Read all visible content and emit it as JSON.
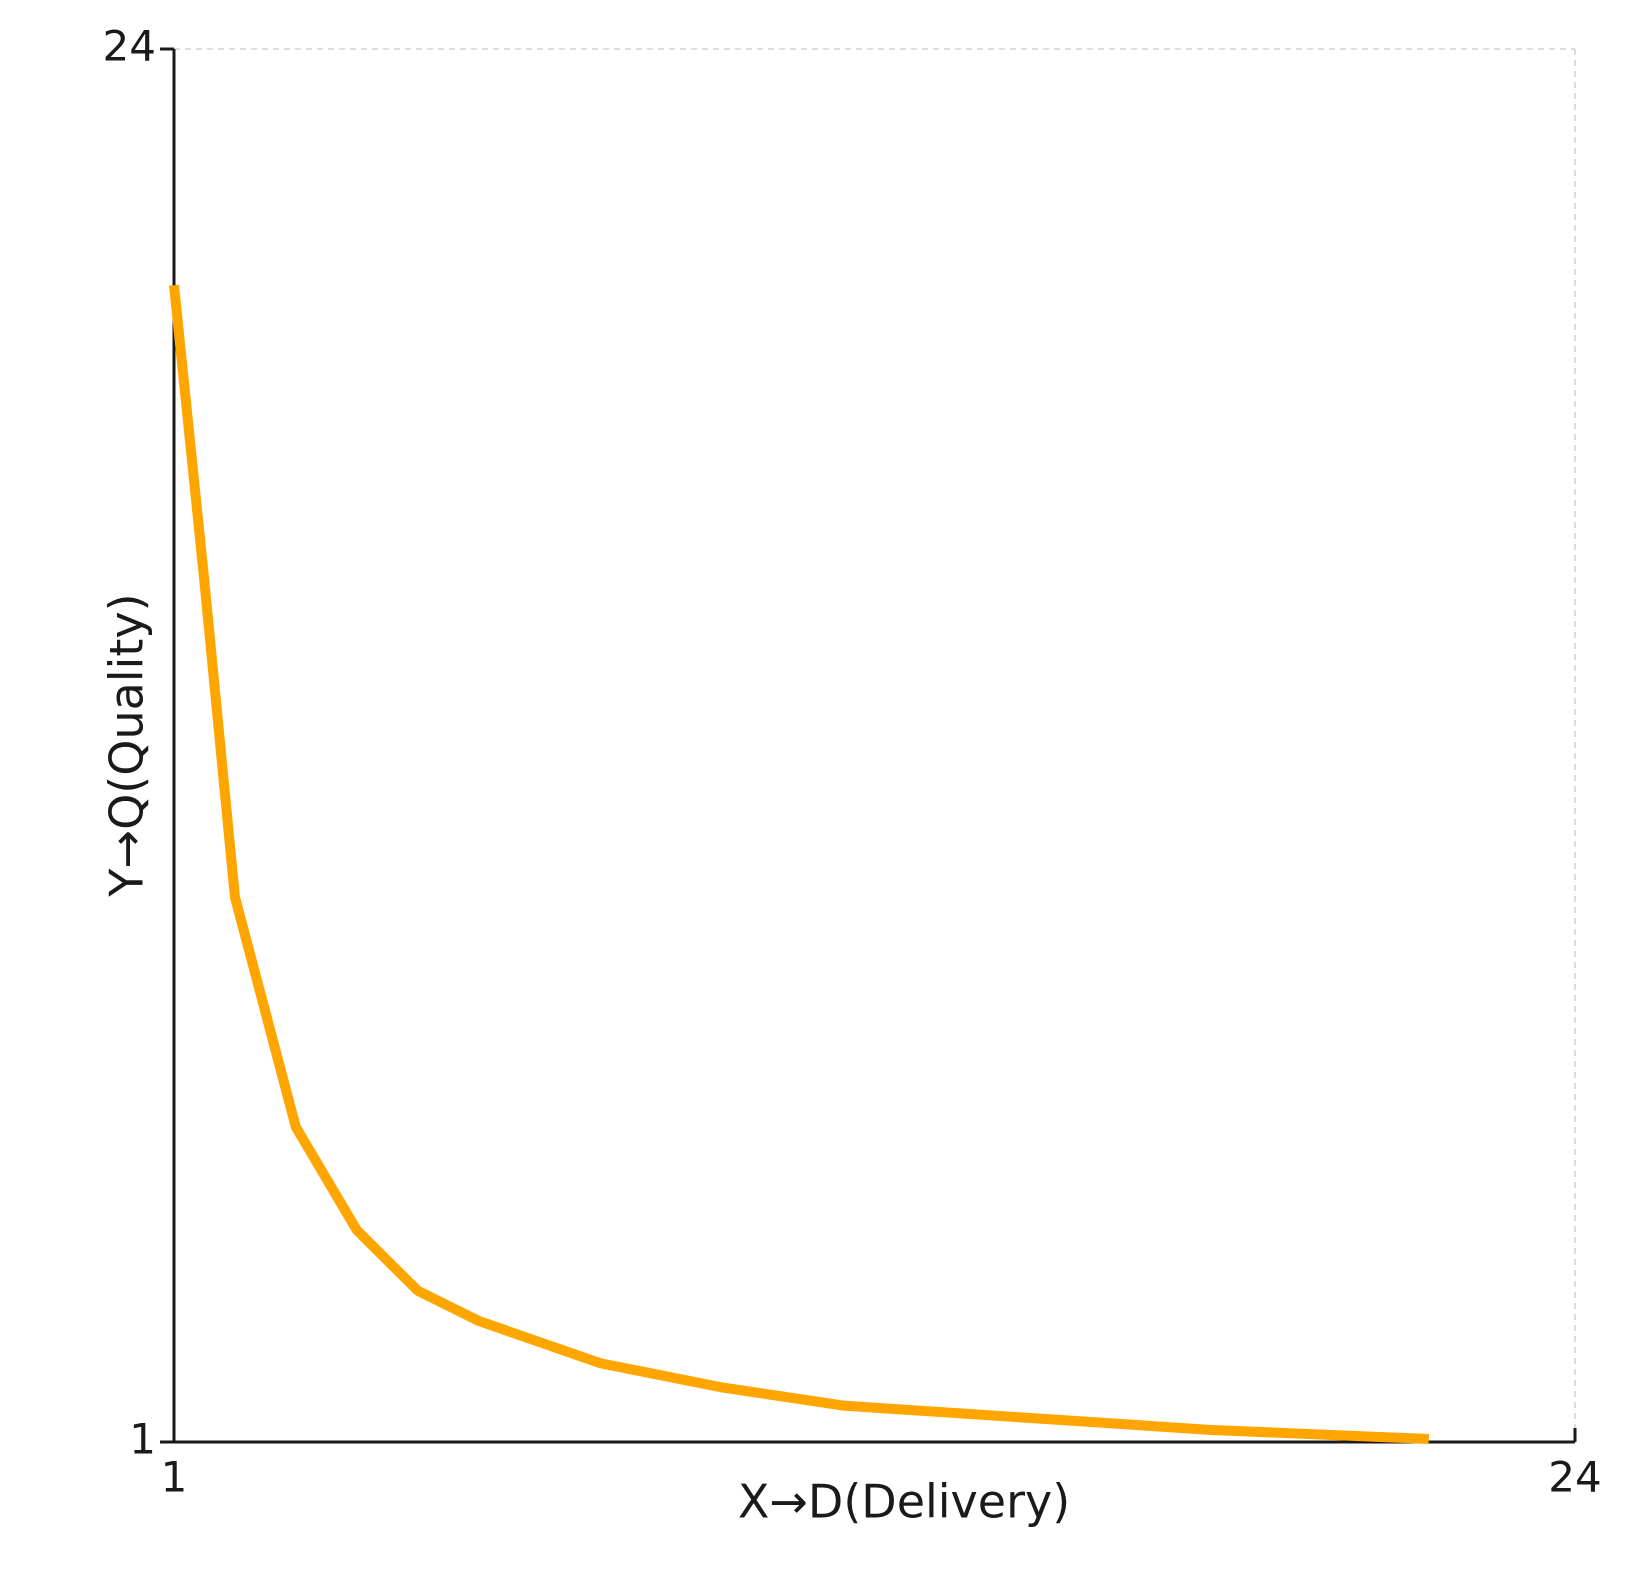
{
  "chart_data": {
    "type": "line",
    "x_label": "X→D(Delivery)",
    "y_label": "Y→Q(Quality)",
    "x": [
      1,
      1.5,
      2,
      3,
      4,
      5,
      6,
      8,
      10,
      12,
      15,
      18,
      21.6
    ],
    "series": [
      {
        "name": "Q",
        "color": "#ffa500",
        "values": [
          20.1,
          15.2,
          10.0,
          6.2,
          4.5,
          3.5,
          3.0,
          2.3,
          1.9,
          1.6,
          1.4,
          1.2,
          1.05
        ]
      }
    ],
    "xlim": [
      1,
      24
    ],
    "ylim": [
      1,
      24
    ],
    "xticks": [
      1,
      24
    ],
    "yticks": [
      1,
      24
    ],
    "grid": true
  }
}
